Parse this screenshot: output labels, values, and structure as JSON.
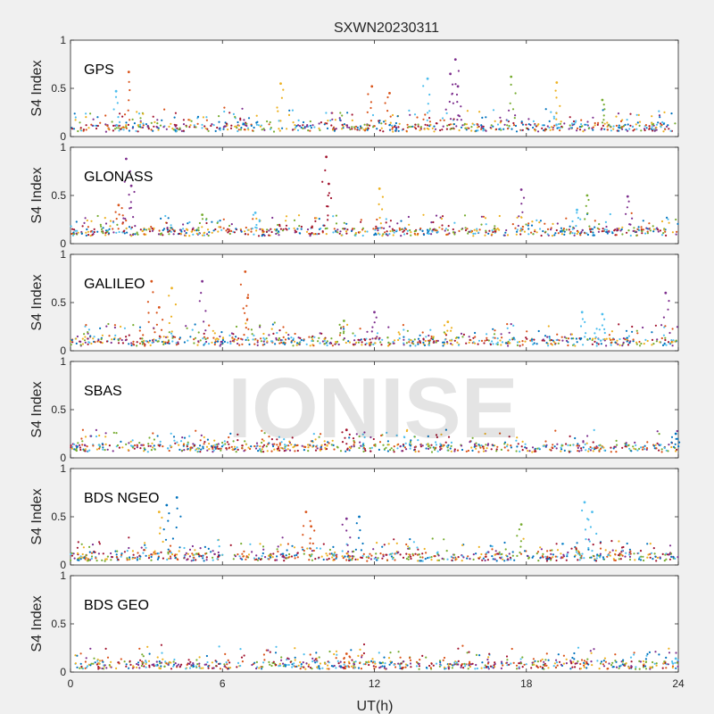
{
  "chart_data": {
    "type": "scatter",
    "title": "SXWN20230311",
    "xlabel": "UT(h)",
    "ylabel": "S4 Index",
    "xlim": [
      0,
      24
    ],
    "ylim": [
      0,
      1
    ],
    "xticks": [
      "0",
      "6",
      "12",
      "18",
      "24"
    ],
    "yticks": [
      "0",
      "0.5",
      "1"
    ],
    "watermark": "IONISE",
    "colors": [
      "#0072bd",
      "#d95319",
      "#edb120",
      "#7e2f8e",
      "#77ac30",
      "#4dbeee",
      "#a2142f"
    ],
    "panels": [
      {
        "label": "GPS",
        "baseline": 0.09,
        "spikes": [
          {
            "x": 1.8,
            "y": 0.47,
            "c": 5
          },
          {
            "x": 2.3,
            "y": 0.67,
            "c": 1
          },
          {
            "x": 8.3,
            "y": 0.55,
            "c": 2
          },
          {
            "x": 11.9,
            "y": 0.52,
            "c": 1
          },
          {
            "x": 12.6,
            "y": 0.45,
            "c": 1
          },
          {
            "x": 14.1,
            "y": 0.6,
            "c": 5
          },
          {
            "x": 15.0,
            "y": 0.65,
            "c": 3
          },
          {
            "x": 15.2,
            "y": 0.8,
            "c": 3
          },
          {
            "x": 15.3,
            "y": 0.52,
            "c": 3
          },
          {
            "x": 17.4,
            "y": 0.62,
            "c": 4
          },
          {
            "x": 19.2,
            "y": 0.56,
            "c": 2
          },
          {
            "x": 21.0,
            "y": 0.38,
            "c": 4
          }
        ]
      },
      {
        "label": "GLONASS",
        "baseline": 0.12,
        "spikes": [
          {
            "x": 1.9,
            "y": 0.4,
            "c": 1
          },
          {
            "x": 2.2,
            "y": 0.88,
            "c": 3
          },
          {
            "x": 2.4,
            "y": 0.6,
            "c": 3
          },
          {
            "x": 5.2,
            "y": 0.3,
            "c": 4
          },
          {
            "x": 7.3,
            "y": 0.32,
            "c": 5
          },
          {
            "x": 10.1,
            "y": 0.9,
            "c": 6
          },
          {
            "x": 10.2,
            "y": 0.62,
            "c": 6
          },
          {
            "x": 12.2,
            "y": 0.57,
            "c": 2
          },
          {
            "x": 17.8,
            "y": 0.56,
            "c": 3
          },
          {
            "x": 20.4,
            "y": 0.5,
            "c": 4
          },
          {
            "x": 20.0,
            "y": 0.35,
            "c": 5
          },
          {
            "x": 22.0,
            "y": 0.49,
            "c": 3
          }
        ]
      },
      {
        "label": "GALILEO",
        "baseline": 0.09,
        "spikes": [
          {
            "x": 3.2,
            "y": 0.72,
            "c": 1
          },
          {
            "x": 3.5,
            "y": 0.45,
            "c": 1
          },
          {
            "x": 4.0,
            "y": 0.65,
            "c": 2
          },
          {
            "x": 5.2,
            "y": 0.72,
            "c": 3
          },
          {
            "x": 6.9,
            "y": 0.82,
            "c": 1
          },
          {
            "x": 7.0,
            "y": 0.55,
            "c": 1
          },
          {
            "x": 10.8,
            "y": 0.31,
            "c": 4
          },
          {
            "x": 12.0,
            "y": 0.4,
            "c": 3
          },
          {
            "x": 14.9,
            "y": 0.3,
            "c": 2
          },
          {
            "x": 20.2,
            "y": 0.4,
            "c": 5
          },
          {
            "x": 21.0,
            "y": 0.38,
            "c": 5
          },
          {
            "x": 23.5,
            "y": 0.6,
            "c": 3
          }
        ]
      },
      {
        "label": "SBAS",
        "baseline": 0.1,
        "spikes": [
          {
            "x": 10.9,
            "y": 0.29,
            "c": 6
          },
          {
            "x": 23.9,
            "y": 0.25,
            "c": 0
          }
        ]
      },
      {
        "label": "BDS NGEO",
        "baseline": 0.08,
        "spikes": [
          {
            "x": 3.5,
            "y": 0.55,
            "c": 2
          },
          {
            "x": 3.8,
            "y": 0.62,
            "c": 0
          },
          {
            "x": 4.2,
            "y": 0.7,
            "c": 0
          },
          {
            "x": 9.3,
            "y": 0.55,
            "c": 1
          },
          {
            "x": 9.5,
            "y": 0.4,
            "c": 1
          },
          {
            "x": 10.9,
            "y": 0.48,
            "c": 3
          },
          {
            "x": 11.4,
            "y": 0.5,
            "c": 0
          },
          {
            "x": 17.8,
            "y": 0.42,
            "c": 4
          },
          {
            "x": 20.3,
            "y": 0.65,
            "c": 5
          },
          {
            "x": 20.6,
            "y": 0.55,
            "c": 5
          }
        ]
      },
      {
        "label": "BDS GEO",
        "baseline": 0.07,
        "spikes": [
          {
            "x": 10.9,
            "y": 0.19,
            "c": 1
          },
          {
            "x": 23.9,
            "y": 0.14,
            "c": 5
          }
        ]
      }
    ]
  }
}
